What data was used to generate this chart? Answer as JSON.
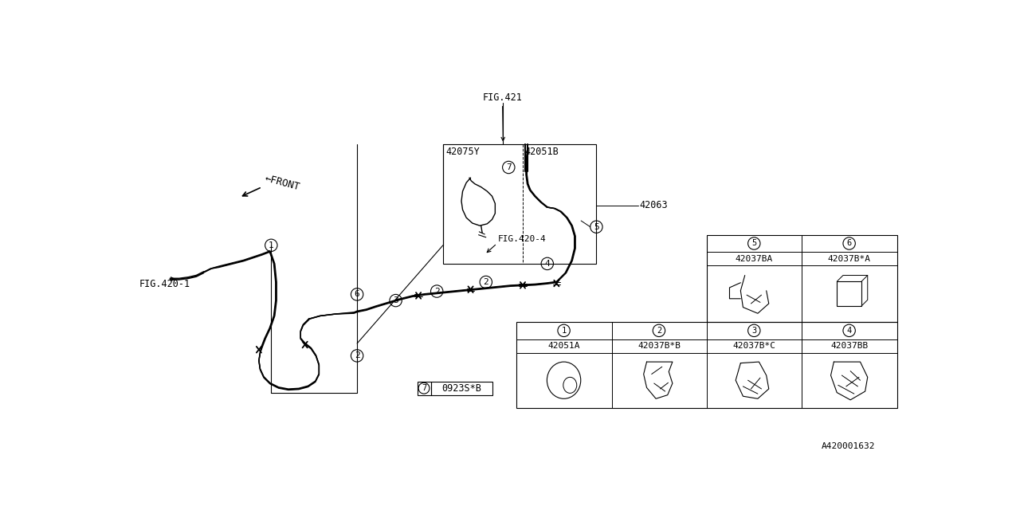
{
  "bg_color": "#ffffff",
  "lc": "#000000",
  "fig_ref": "A420001632",
  "fig421": "FIG.421",
  "fig420_1": "FIG.420-1",
  "fig420_4": "FIG.420-4",
  "label_42075Y": "42075Y",
  "label_42051B": "42051B",
  "label_42063": "42063",
  "front_label": "←FRONT",
  "callout7_code": "0923S*B",
  "parts_bottom": [
    {
      "num": "1",
      "code": "42051A"
    },
    {
      "num": "2",
      "code": "42037B*B"
    },
    {
      "num": "3",
      "code": "42037B*C"
    },
    {
      "num": "4",
      "code": "42037BB"
    }
  ],
  "parts_top": [
    {
      "num": "5",
      "code": "42037BA"
    },
    {
      "num": "6",
      "code": "42037B*A"
    }
  ]
}
